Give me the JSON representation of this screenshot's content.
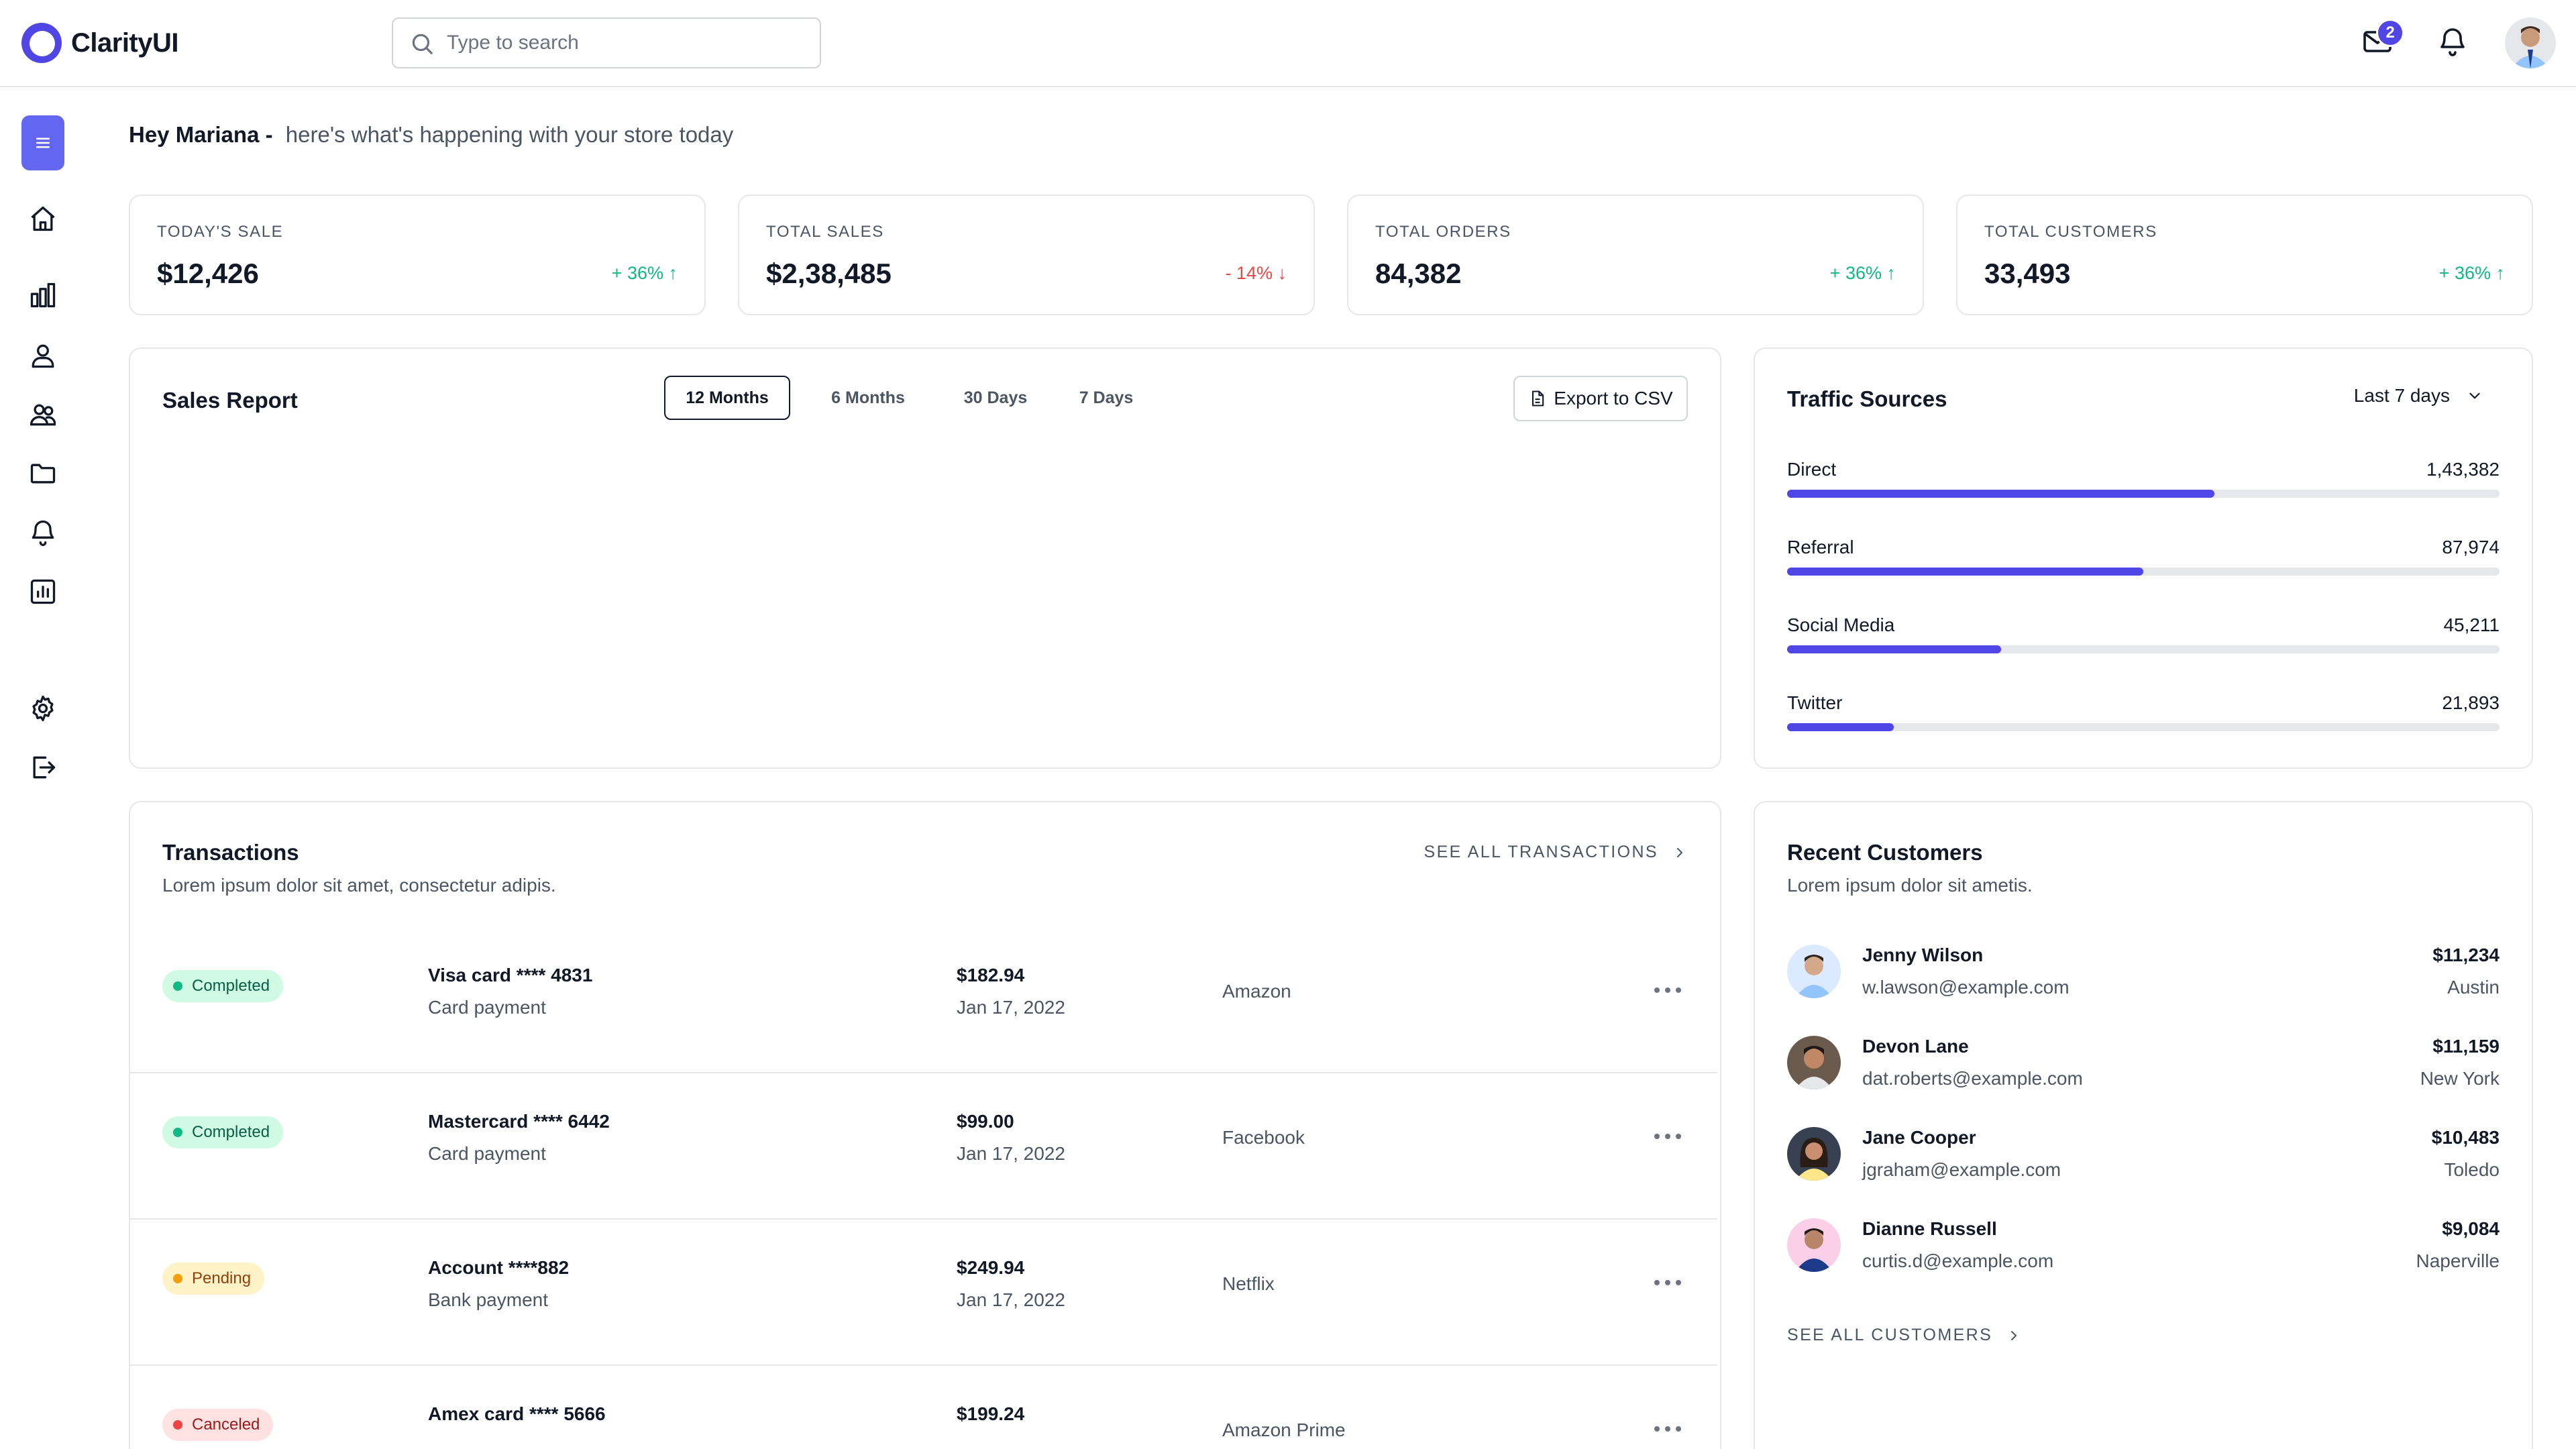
{
  "app": {
    "name": "ClarityUI"
  },
  "search": {
    "placeholder": "Type to search"
  },
  "header": {
    "mail_badge": "2"
  },
  "greeting": {
    "name": "Hey Mariana -",
    "subtitle": "here's what's happening with your store today"
  },
  "stats": [
    {
      "label": "TODAY'S SALE",
      "value": "$12,426",
      "change": "+ 36%",
      "trend": "up"
    },
    {
      "label": "TOTAL SALES",
      "value": "$2,38,485",
      "change": "- 14%",
      "trend": "down"
    },
    {
      "label": "TOTAL ORDERS",
      "value": "84,382",
      "change": "+ 36%",
      "trend": "up"
    },
    {
      "label": "TOTAL CUSTOMERS",
      "value": "33,493",
      "change": "+ 36%",
      "trend": "up"
    }
  ],
  "sales_report": {
    "title": "Sales Report",
    "ranges": [
      "12 Months",
      "6 Months",
      "30 Days",
      "7 Days"
    ],
    "active_range": "12 Months",
    "export_label": "Export to CSV"
  },
  "traffic": {
    "title": "Traffic Sources",
    "period": "Last 7 days",
    "sources": [
      {
        "label": "Direct",
        "value": "1,43,382",
        "fill": 0.6
      },
      {
        "label": "Referral",
        "value": "87,974",
        "fill": 0.5
      },
      {
        "label": "Social Media",
        "value": "45,211",
        "fill": 0.3
      },
      {
        "label": "Twitter",
        "value": "21,893",
        "fill": 0.15
      }
    ]
  },
  "transactions": {
    "title": "Transactions",
    "subtitle": "Lorem ipsum dolor sit amet, consectetur adipis.",
    "see_all": "SEE ALL TRANSACTIONS",
    "rows": [
      {
        "status": "Completed",
        "status_type": "completed",
        "card": "Visa card **** 4831",
        "method": "Card payment",
        "amount": "$182.94",
        "date": "Jan 17, 2022",
        "merchant": "Amazon"
      },
      {
        "status": "Completed",
        "status_type": "completed",
        "card": "Mastercard **** 6442",
        "method": "Card payment",
        "amount": "$99.00",
        "date": "Jan 17, 2022",
        "merchant": "Facebook"
      },
      {
        "status": "Pending",
        "status_type": "pending",
        "card": "Account ****882",
        "method": "Bank payment",
        "amount": "$249.94",
        "date": "Jan 17, 2022",
        "merchant": "Netflix"
      },
      {
        "status": "Canceled",
        "status_type": "canceled",
        "card": "Amex card **** 5666",
        "method": "",
        "amount": "$199.24",
        "date": "",
        "merchant": "Amazon Prime"
      }
    ]
  },
  "customers": {
    "title": "Recent Customers",
    "subtitle": "Lorem ipsum dolor sit ametis.",
    "see_all": "SEE ALL CUSTOMERS",
    "rows": [
      {
        "name": "Jenny Wilson",
        "email": "w.lawson@example.com",
        "amount": "$11,234",
        "city": "Austin"
      },
      {
        "name": "Devon Lane",
        "email": "dat.roberts@example.com",
        "amount": "$11,159",
        "city": "New York"
      },
      {
        "name": "Jane Cooper",
        "email": "jgraham@example.com",
        "amount": "$10,483",
        "city": "Toledo"
      },
      {
        "name": "Dianne Russell",
        "email": "curtis.d@example.com",
        "amount": "$9,084",
        "city": "Naperville"
      }
    ]
  },
  "colors": {
    "accent": "#4f46e5",
    "sidebar_toggle": "#6366f1",
    "positive": "#10b981",
    "negative": "#ef4444"
  },
  "icons": {
    "sidebar": [
      "menu-icon",
      "home-icon",
      "bar-chart-icon",
      "user-icon",
      "users-icon",
      "folder-icon",
      "bell-icon",
      "report-icon",
      "settings-icon",
      "logout-icon"
    ],
    "header": [
      "search-icon",
      "mail-icon",
      "bell-icon",
      "avatar"
    ]
  }
}
